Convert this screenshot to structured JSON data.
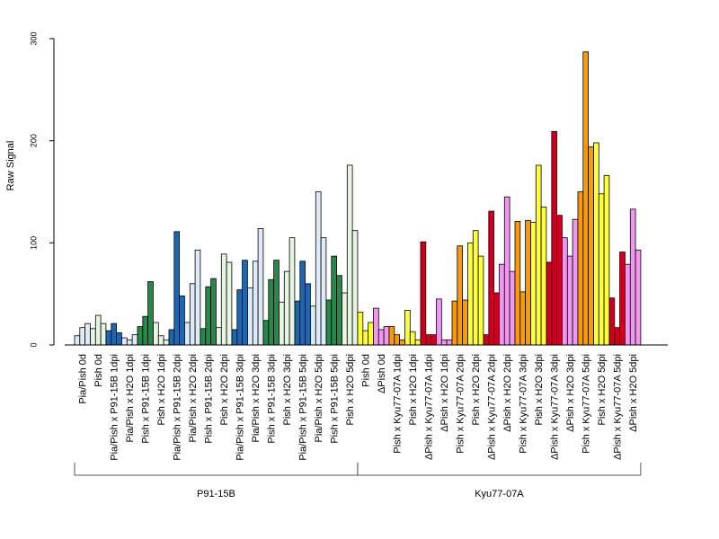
{
  "chart_data": {
    "type": "bar",
    "ylabel": "Raw Signal",
    "ylim": [
      0,
      300
    ],
    "yticks": [
      0,
      100,
      200,
      300
    ],
    "categories": [
      "Pia/Pish 0d",
      "Pish 0d",
      "Pia/Pish x P91-15B 1dpi",
      "Pia/Pish x H2O 1dpi",
      "Pish x P91-15B 1dpi",
      "Pish x H2O 1dpi",
      "Pia/Pish x P91-15B 2dpi",
      "Pia/Pish x H2O 2dpi",
      "Pish x P91-15B 2dpi",
      "Pish x H2O 2dpi",
      "Pia/Pish x P91-15B 3dpi",
      "Pia/Pish x H2O 3dpi",
      "Pish x P91-15B 3dpi",
      "Pish x H2O 3dpi",
      "Pia/Pish x P91-15B 5dpi",
      "Pia/Pish x H2O 5dpi",
      "Pish x P91-15B 5dpi",
      "Pish x H2O 5dpi",
      "Pish 0d",
      "ΔPish 0d",
      "Pish x Kyu77-07A 1dpi",
      "Pish x H2O 1dpi",
      "ΔPish x Kyu77-07A 1dpi",
      "ΔPish x H2O 1dpi",
      "Pish x Kyu77-07A 2dpi",
      "Pish x H2O 2dpi",
      "ΔPish x Kyu77-07A 2dpi",
      "ΔPish x H2O 2dpi",
      "Pish x Kyu77-07A 3dpi",
      "Pish x H2O 3dpi",
      "ΔPish x Kyu77-07A 3dpi",
      "ΔPish x H2O 3dpi",
      "Pish x Kyu77-07A 5dpi",
      "Pish x H2O 5dpi",
      "ΔPish x Kyu77-07A 5dpi",
      "ΔPish x H2O 5dpi"
    ],
    "values": [
      [
        9,
        17,
        21
      ],
      [
        16,
        29,
        21
      ],
      [
        14,
        21,
        12
      ],
      [
        7,
        5,
        10
      ],
      [
        18,
        28,
        62
      ],
      [
        22,
        9,
        5
      ],
      [
        15,
        111,
        48
      ],
      [
        22,
        60,
        93
      ],
      [
        16,
        57,
        65
      ],
      [
        17,
        89,
        81
      ],
      [
        15,
        54,
        83
      ],
      [
        56,
        82,
        114
      ],
      [
        24,
        64,
        83
      ],
      [
        42,
        72,
        105
      ],
      [
        43,
        82,
        60
      ],
      [
        38,
        150,
        105
      ],
      [
        44,
        87,
        68
      ],
      [
        51,
        176,
        112
      ],
      [
        32,
        14,
        22
      ],
      [
        36,
        15,
        18
      ],
      [
        18,
        10,
        5
      ],
      [
        34,
        13,
        5
      ],
      [
        101,
        10,
        10
      ],
      [
        45,
        5,
        5
      ],
      [
        43,
        97,
        44
      ],
      [
        100,
        112,
        87
      ],
      [
        10,
        131,
        51
      ],
      [
        79,
        145,
        72
      ],
      [
        121,
        52,
        122
      ],
      [
        120,
        176,
        135
      ],
      [
        81,
        209,
        127
      ],
      [
        105,
        87,
        123
      ],
      [
        150,
        287,
        194
      ],
      [
        198,
        148,
        166
      ],
      [
        46,
        17,
        91
      ],
      [
        79,
        133,
        93
      ]
    ],
    "colors": [
      "#deebf7",
      "#e5f5e0",
      "#2166ac",
      "#deebf7",
      "#238b45",
      "#e5f5e0",
      "#2166ac",
      "#deebf7",
      "#238b45",
      "#e5f5e0",
      "#2166ac",
      "#deebf7",
      "#238b45",
      "#e5f5e0",
      "#2166ac",
      "#deebf7",
      "#238b45",
      "#e5f5e0",
      "#ffff33",
      "#ee99ee",
      "#ff9900",
      "#ffff33",
      "#cc0022",
      "#ee99ee",
      "#ff9900",
      "#ffff33",
      "#cc0022",
      "#ee99ee",
      "#ff9900",
      "#ffff33",
      "#cc0022",
      "#ee99ee",
      "#ff9900",
      "#ffff33",
      "#cc0022",
      "#ee99ee"
    ],
    "groups": [
      {
        "label": "P91-15B",
        "from": 0,
        "to": 17
      },
      {
        "label": "Kyu77-07A",
        "from": 18,
        "to": 35
      }
    ],
    "grid": false
  }
}
